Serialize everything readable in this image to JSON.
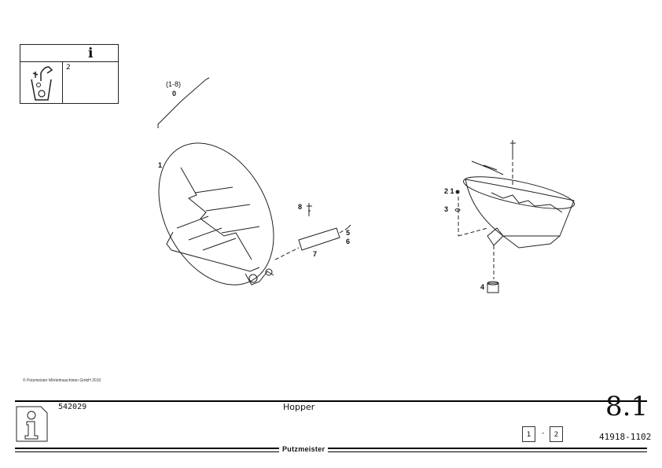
{
  "legend": {
    "quantity_label": "2",
    "info_symbol": "i"
  },
  "drawing": {
    "labels": {
      "range": "(1-8)",
      "zero": "0",
      "one": "1",
      "eight": "8",
      "five": "5",
      "six": "6",
      "seven": "7",
      "two_one": "2 1",
      "three": "3",
      "four": "4"
    }
  },
  "copyright": "© Putzmeister Mörtelmaschinen GmbH 2010",
  "footer": {
    "doc_number": "542029",
    "title": "Hopper",
    "chapter": "8.1",
    "page_current": "1",
    "page_separator": "-",
    "page_total": "2",
    "part_number": "41918-1102",
    "brand": "Putzmeister"
  }
}
